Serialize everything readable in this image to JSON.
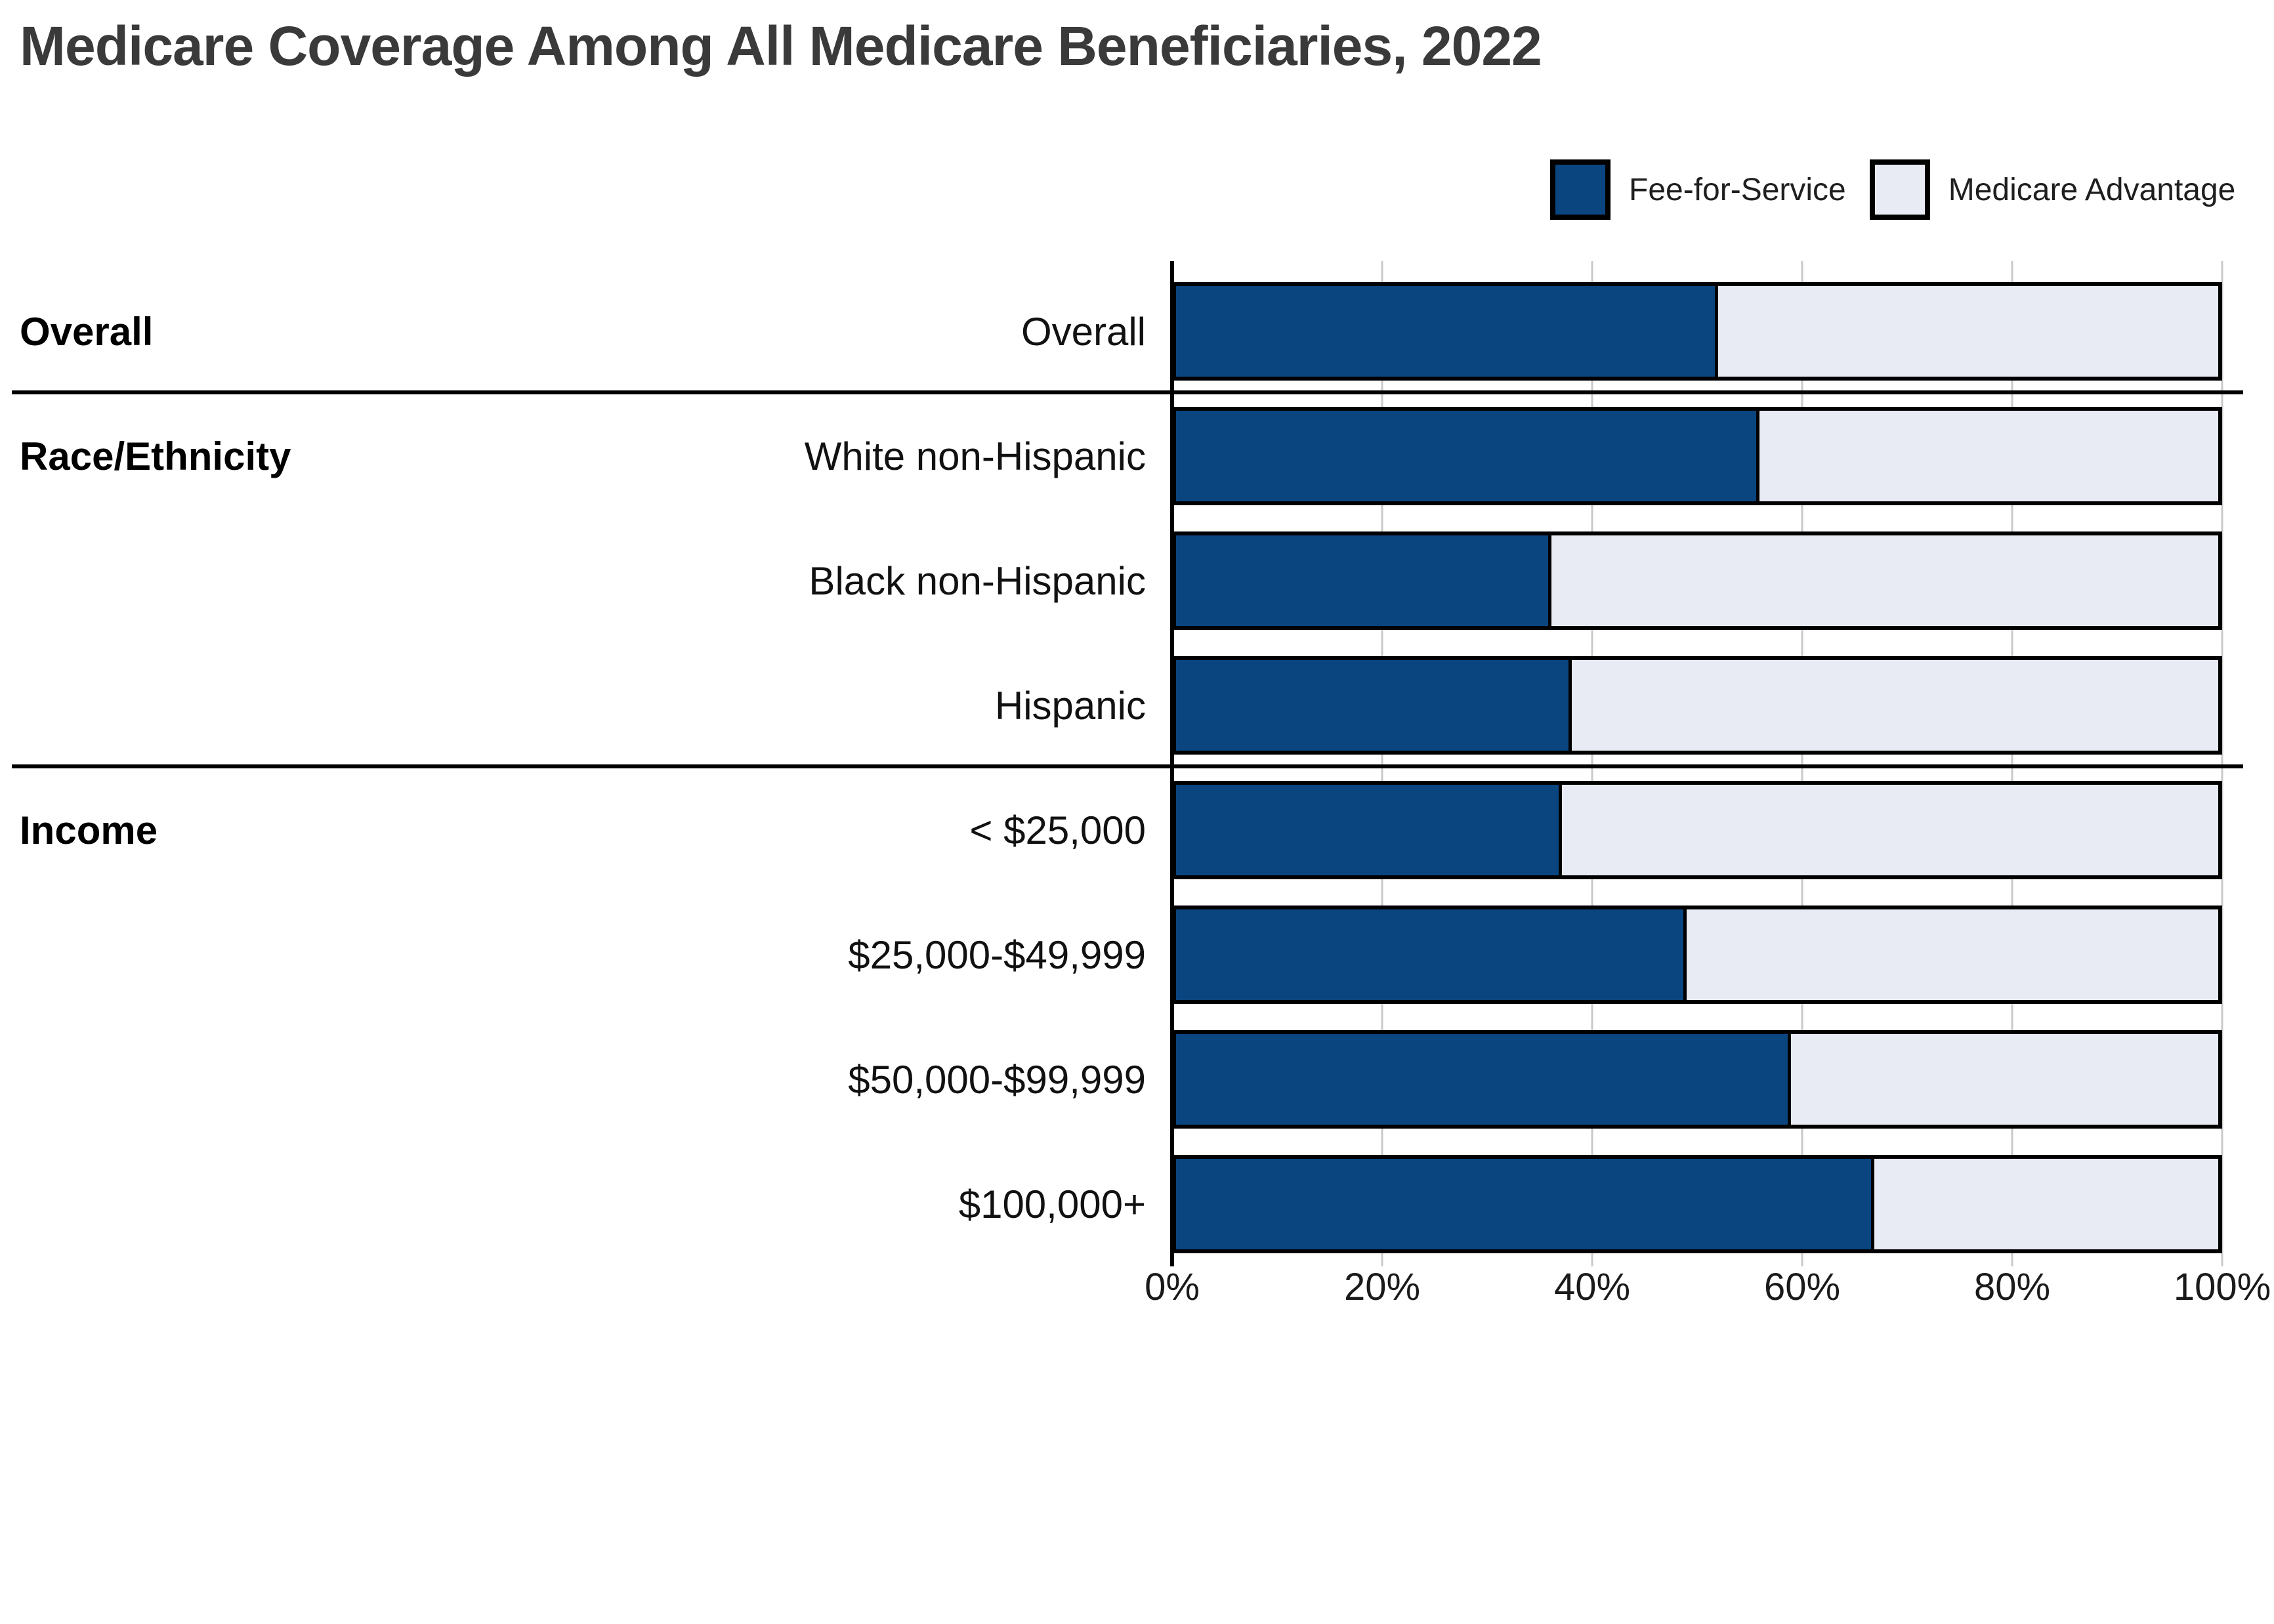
{
  "title": "Medicare Coverage Among All Medicare Beneficiaries, 2022",
  "legend": {
    "position": "top-right",
    "items": [
      {
        "label": "Fee-for-Service",
        "color": "#0A4580"
      },
      {
        "label": "Medicare Advantage",
        "color": "#E8EBF3"
      }
    ]
  },
  "chart_data": {
    "type": "bar",
    "orientation": "horizontal",
    "stacked": true,
    "unit": "percent",
    "title": "Medicare Coverage Among All Medicare Beneficiaries, 2022",
    "xlabel": "",
    "ylabel": "",
    "xlim": [
      0,
      100
    ],
    "grid": true,
    "x_ticks": [
      "0%",
      "20%",
      "40%",
      "60%",
      "80%",
      "100%"
    ],
    "groups": [
      {
        "label": "Overall",
        "row_start": 0,
        "rows": [
          "Overall"
        ]
      },
      {
        "label": "Race/Ethnicity",
        "row_start": 1,
        "rows": [
          "White non-Hispanic",
          "Black non-Hispanic",
          "Hispanic"
        ]
      },
      {
        "label": "Income",
        "row_start": 4,
        "rows": [
          "< $25,000",
          "$25,000-$49,999",
          "$50,000-$99,999",
          "$100,000+"
        ]
      }
    ],
    "categories": [
      "Overall",
      "White non-Hispanic",
      "Black non-Hispanic",
      "Hispanic",
      "< $25,000",
      "$25,000-$49,999",
      "$50,000-$99,999",
      "$100,000+"
    ],
    "series": [
      {
        "name": "Fee-for-Service",
        "color": "#0A4580",
        "values": [
          52,
          56,
          36,
          38,
          37,
          49,
          59,
          67
        ]
      },
      {
        "name": "Medicare Advantage",
        "color": "#E8EBF3",
        "values": [
          48,
          44,
          64,
          62,
          63,
          51,
          41,
          33
        ]
      }
    ]
  },
  "colors": {
    "fee_for_service": "#0A4580",
    "medicare_advantage": "#E8EBF3",
    "bar_border": "#000000",
    "gridline": "#c9c9c9",
    "title_text": "#3a3a3a"
  }
}
